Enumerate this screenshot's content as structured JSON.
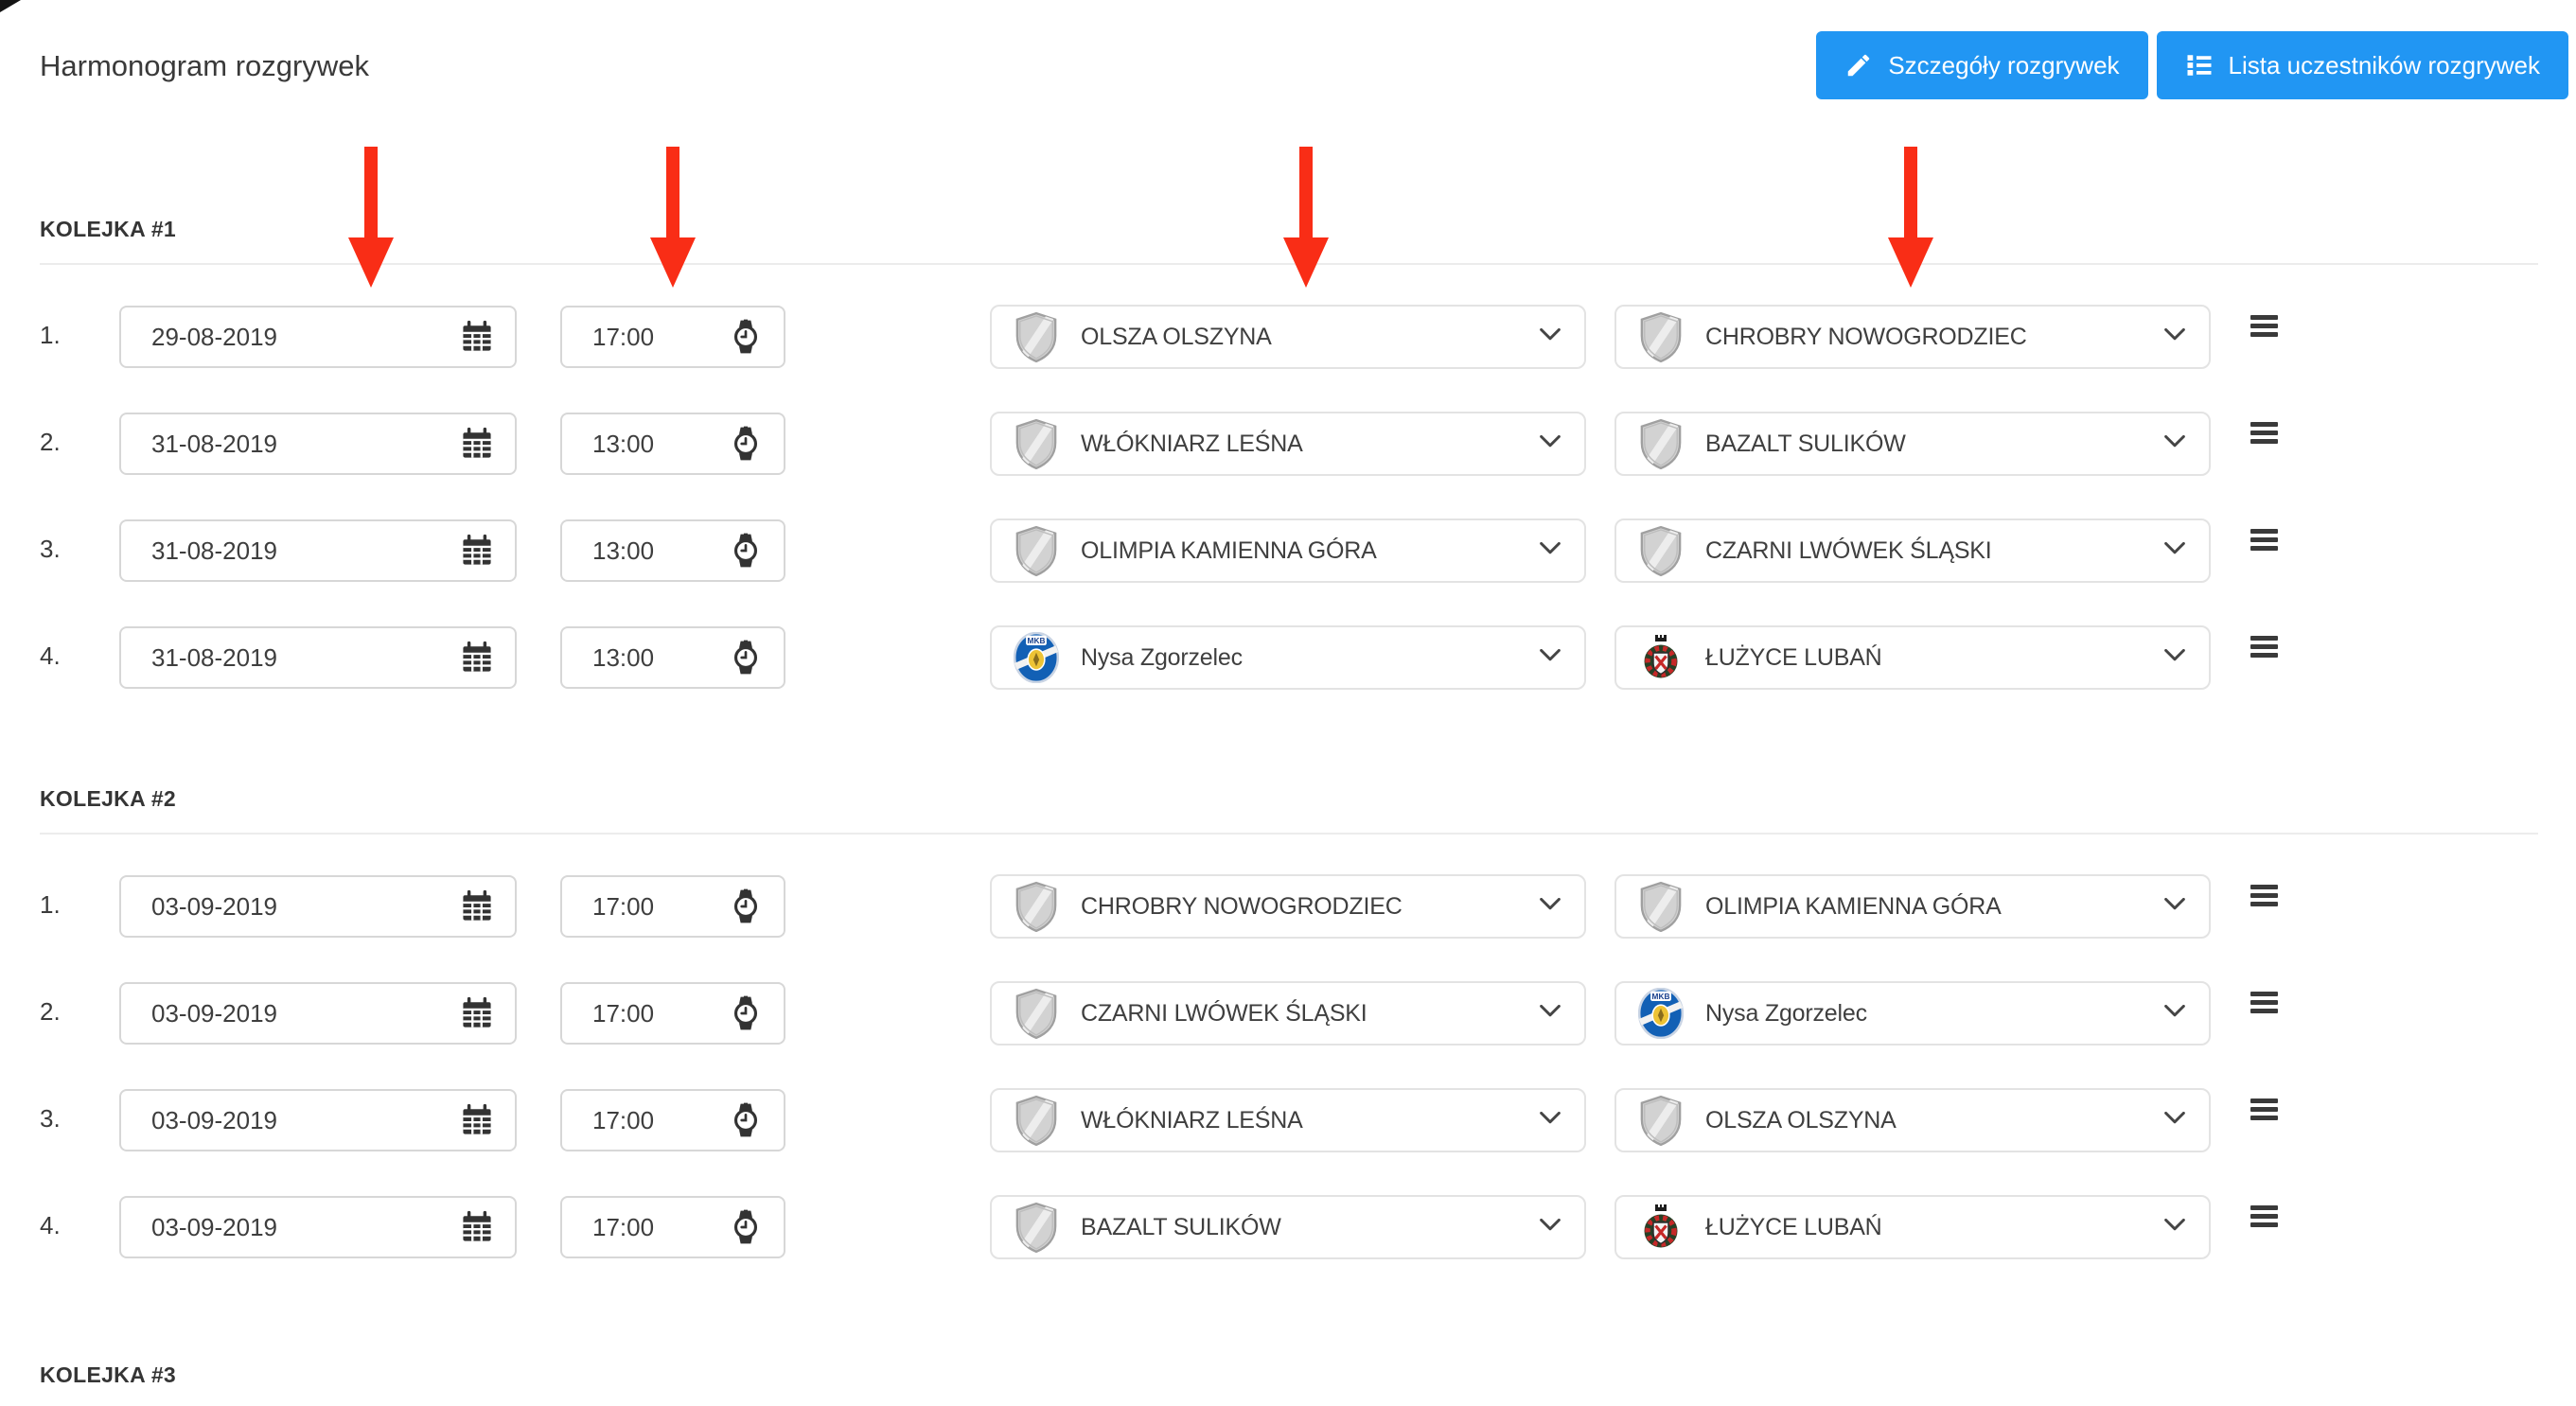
{
  "title": "Harmonogram rozgrywek",
  "actions": {
    "details_button": {
      "label": "Szczegóły rozgrywek",
      "icon": "pencil-icon"
    },
    "participants_button": {
      "label": "Lista uczestników rozgrywek",
      "icon": "list-icon"
    }
  },
  "colors": {
    "accent_blue": "#2196f3",
    "arrow_red": "#f92d16"
  },
  "annotation_arrows": [
    "date-column-arrow",
    "time-column-arrow",
    "home-team-column-arrow",
    "away-team-column-arrow"
  ],
  "badge_labels": {
    "nysa_badge_text": "MKB"
  },
  "rounds": [
    {
      "label": "KOLEJKA #1",
      "matches": [
        {
          "no": "1.",
          "date": "29-08-2019",
          "time": "17:00",
          "home": {
            "name": "OLSZA OLSZYNA",
            "badge": "shield"
          },
          "away": {
            "name": "CHROBRY NOWOGRODZIEC",
            "badge": "shield"
          }
        },
        {
          "no": "2.",
          "date": "31-08-2019",
          "time": "13:00",
          "home": {
            "name": "WŁÓKNIARZ LEŚNA",
            "badge": "shield"
          },
          "away": {
            "name": "BAZALT SULIKÓW",
            "badge": "shield"
          }
        },
        {
          "no": "3.",
          "date": "31-08-2019",
          "time": "13:00",
          "home": {
            "name": "OLIMPIA KAMIENNA GÓRA",
            "badge": "shield"
          },
          "away": {
            "name": "CZARNI LWÓWEK ŚLĄSKI",
            "badge": "shield"
          }
        },
        {
          "no": "4.",
          "date": "31-08-2019",
          "time": "13:00",
          "home": {
            "name": "Nysa Zgorzelec",
            "badge": "nysa"
          },
          "away": {
            "name": "ŁUŻYCE LUBAŃ",
            "badge": "luzyce"
          }
        }
      ]
    },
    {
      "label": "KOLEJKA #2",
      "matches": [
        {
          "no": "1.",
          "date": "03-09-2019",
          "time": "17:00",
          "home": {
            "name": "CHROBRY NOWOGRODZIEC",
            "badge": "shield"
          },
          "away": {
            "name": "OLIMPIA KAMIENNA GÓRA",
            "badge": "shield"
          }
        },
        {
          "no": "2.",
          "date": "03-09-2019",
          "time": "17:00",
          "home": {
            "name": "CZARNI LWÓWEK ŚLĄSKI",
            "badge": "shield"
          },
          "away": {
            "name": "Nysa Zgorzelec",
            "badge": "nysa"
          }
        },
        {
          "no": "3.",
          "date": "03-09-2019",
          "time": "17:00",
          "home": {
            "name": "WŁÓKNIARZ LEŚNA",
            "badge": "shield"
          },
          "away": {
            "name": "OLSZA OLSZYNA",
            "badge": "shield"
          }
        },
        {
          "no": "4.",
          "date": "03-09-2019",
          "time": "17:00",
          "home": {
            "name": "BAZALT SULIKÓW",
            "badge": "shield"
          },
          "away": {
            "name": "ŁUŻYCE LUBAŃ",
            "badge": "luzyce"
          }
        }
      ]
    },
    {
      "label": "KOLEJKA #3",
      "matches": []
    }
  ]
}
